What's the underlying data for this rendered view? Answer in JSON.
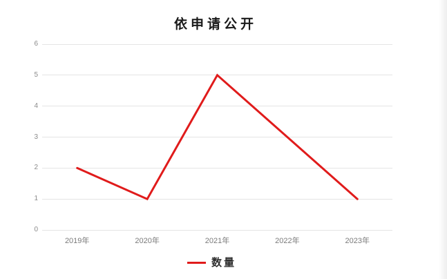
{
  "title": "依申请公开",
  "legend": {
    "label": "数量",
    "color": "#e01b1b"
  },
  "chart_data": {
    "type": "line",
    "title": "依申请公开",
    "categories": [
      "2019年",
      "2020年",
      "2021年",
      "2022年",
      "2023年"
    ],
    "series": [
      {
        "name": "数量",
        "values": [
          2,
          1,
          5,
          3,
          1
        ]
      }
    ],
    "xlabel": "",
    "ylabel": "",
    "ylim": [
      0,
      6
    ],
    "yticks": [
      0,
      1,
      2,
      3,
      4,
      5,
      6
    ],
    "grid": true,
    "legend_position": "bottom",
    "line_color": "#e01b1b",
    "grid_color": "#e4e4e4",
    "y_label_color": "#8a8a8a",
    "x_label_color": "#7a7a7a"
  }
}
